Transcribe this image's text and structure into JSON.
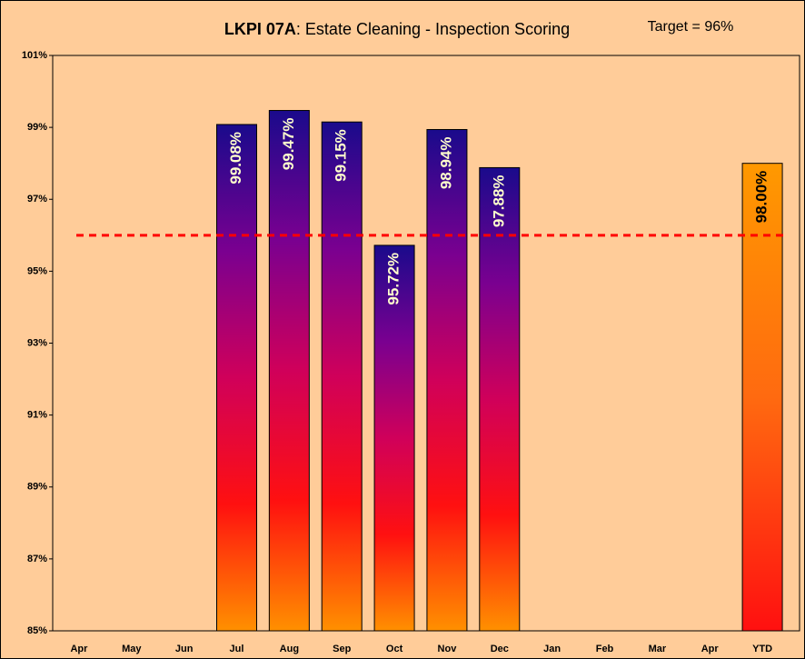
{
  "chart_data": {
    "type": "bar",
    "title_parts": [
      "LKPI 07A",
      ": Estate Cleaning - Inspection Scoring"
    ],
    "target": 96,
    "target_label": "Target = 96%",
    "target_color": "#ff0000",
    "categories": [
      "Apr",
      "May",
      "Jun",
      "Jul",
      "Aug",
      "Sep",
      "Oct",
      "Nov",
      "Dec",
      "Jan",
      "Feb",
      "Mar",
      "Apr",
      "YTD"
    ],
    "values": [
      null,
      null,
      null,
      99.08,
      99.47,
      99.15,
      95.72,
      98.94,
      97.88,
      null,
      null,
      null,
      null,
      98
    ],
    "value_labels": [
      null,
      null,
      null,
      "99.08%",
      "99.47%",
      "99.15%",
      "95.72%",
      "98.94%",
      "97.88%",
      null,
      null,
      null,
      null,
      "98.00%"
    ],
    "gradient": [
      "#1a0a8c",
      "#7a0090",
      "#d0005a",
      "#ff1010",
      "#ff9000"
    ],
    "ytd_gradient": [
      "#ff9900",
      "#ff6a10",
      "#ff1010"
    ],
    "ylim": [
      85,
      101
    ],
    "yticks": [
      {
        "value": 85,
        "label": "85%"
      },
      {
        "value": 87,
        "label": "87%"
      },
      {
        "value": 89,
        "label": "89%"
      },
      {
        "value": 91,
        "label": "91%"
      },
      {
        "value": 93,
        "label": "93%"
      },
      {
        "value": 95,
        "label": "95%"
      },
      {
        "value": 97,
        "label": "97%"
      },
      {
        "value": 99,
        "label": "99%"
      },
      {
        "value": 101,
        "label": "101%"
      }
    ],
    "background": "#ffcc99"
  }
}
